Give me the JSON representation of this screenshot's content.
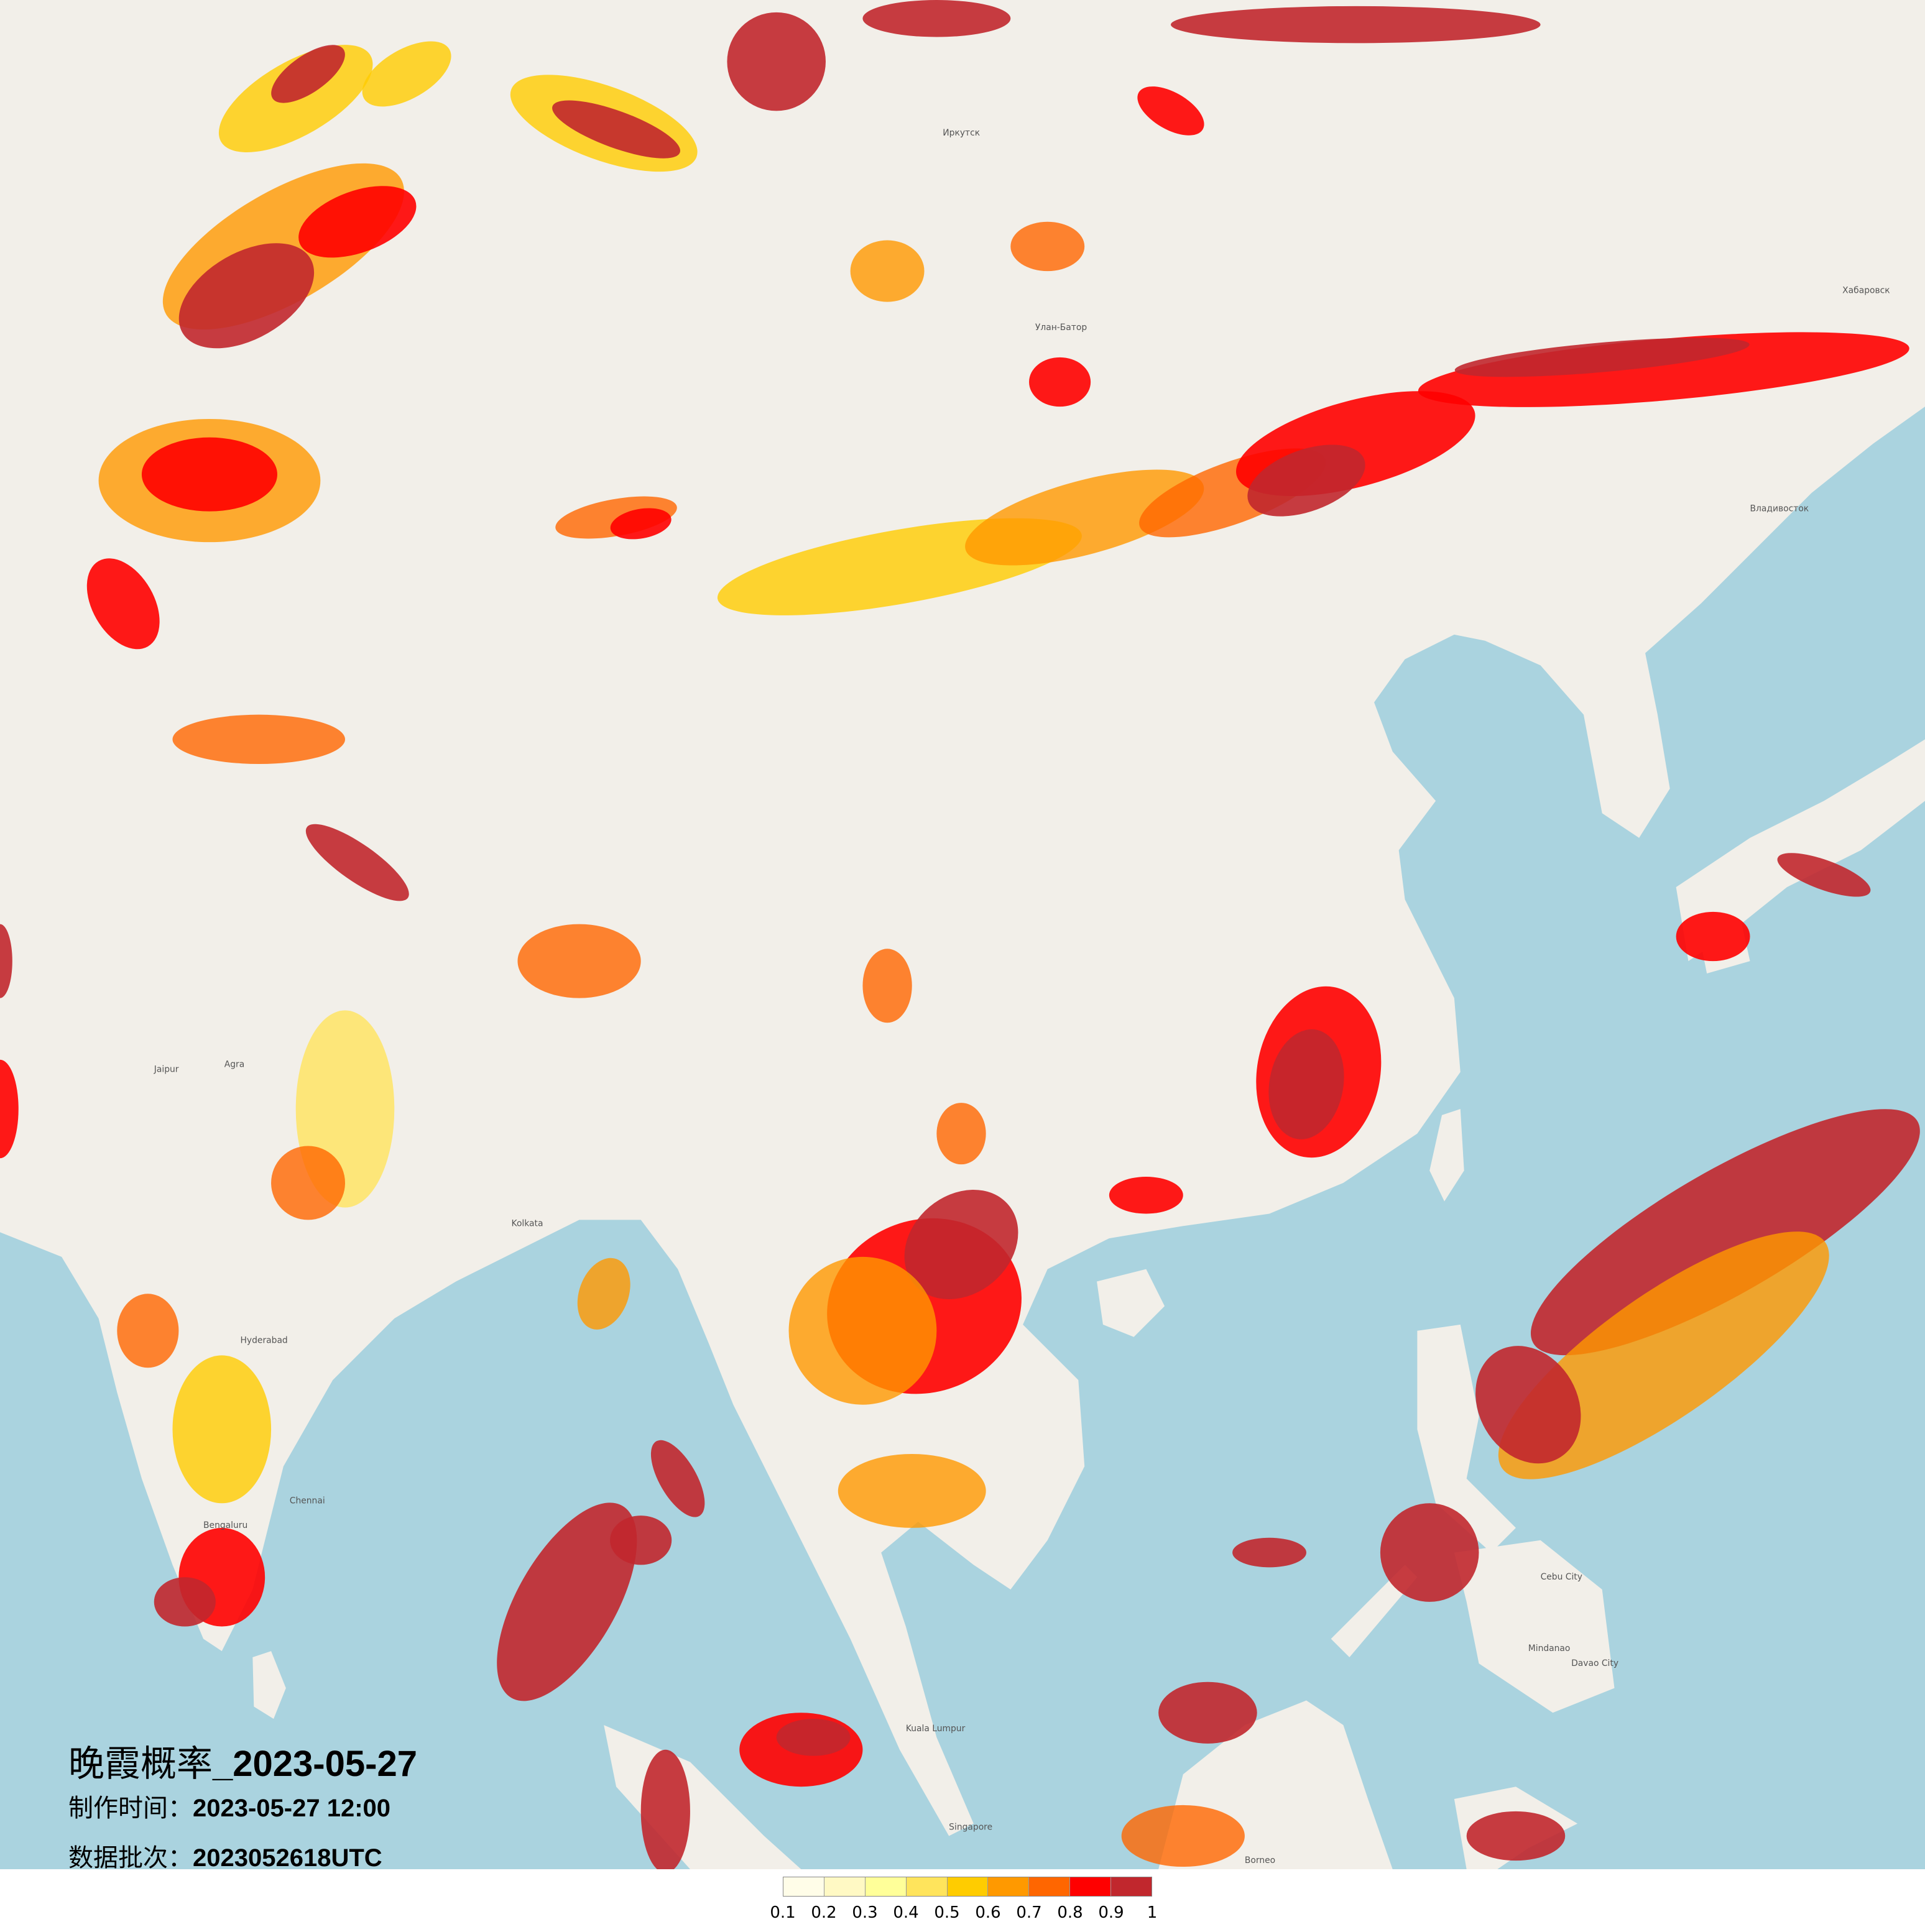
{
  "title": {
    "prefix": "晚霞概率",
    "date": "_2023-05-27"
  },
  "production_time": {
    "label": "制作时间：",
    "value": "2023-05-27 12:00"
  },
  "data_batch": {
    "label": "数据批次：",
    "value": "2023052618UTC"
  },
  "legend": {
    "colors": [
      "#fffde8",
      "#fff9c4",
      "#ffff99",
      "#ffe45c",
      "#ffcc00",
      "#ff9900",
      "#ff6600",
      "#ff0000",
      "#c1272d"
    ],
    "labels": [
      "0.1",
      "0.2",
      "0.3",
      "0.4",
      "0.5",
      "0.6",
      "0.7",
      "0.8",
      "0.9",
      "1"
    ]
  },
  "basemap": {
    "land_color": "#f2efe9",
    "sea_color": "#aad3df",
    "places": [
      "Улан-Батор",
      "Иркутск",
      "Хабаровск",
      "Владивосток",
      "Chennai",
      "Bengaluru",
      "Hyderabad",
      "Kolkata",
      "Singapore",
      "Kuala Lumpur",
      "Borneo",
      "Mindanao",
      "Cebu City",
      "Davao City",
      "Jaipur",
      "Agra"
    ]
  }
}
